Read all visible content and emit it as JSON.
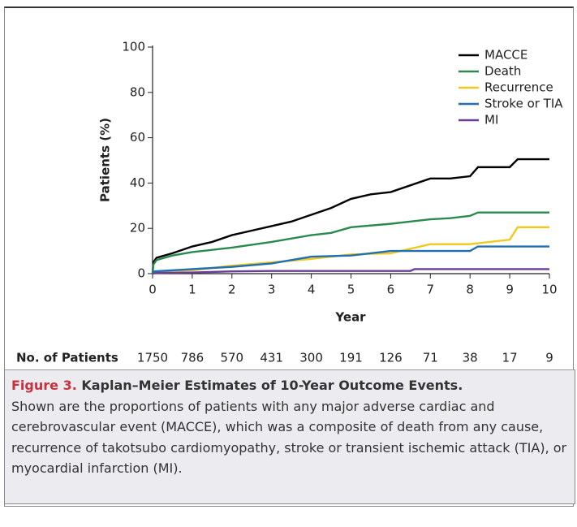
{
  "chart_data": {
    "type": "line",
    "x_label": "Year",
    "y_label": "Patients (%)",
    "xlim": [
      0,
      10
    ],
    "xticks": [
      0,
      1,
      2,
      3,
      4,
      5,
      6,
      7,
      8,
      9,
      10
    ],
    "ylim": [
      0,
      100
    ],
    "yticks": [
      0,
      20,
      40,
      60,
      80,
      100
    ],
    "legend": "upper right",
    "series": [
      {
        "name": "MACCE",
        "color": "#000000",
        "x": [
          0,
          0.02,
          0.1,
          0.5,
          1,
          1.5,
          2,
          2.5,
          3,
          3.5,
          4,
          4.5,
          5,
          5.5,
          6,
          6.5,
          7,
          7.5,
          8,
          8.2,
          9,
          9.2,
          10
        ],
        "values": [
          0,
          5,
          7,
          9,
          12,
          14,
          17,
          19,
          21,
          23,
          26,
          29,
          33,
          35,
          36,
          39,
          42,
          42,
          43,
          47,
          47,
          50.5,
          50.5
        ]
      },
      {
        "name": "Death",
        "color": "#2a8a4e",
        "x": [
          0,
          0.02,
          0.1,
          0.5,
          1,
          2,
          3,
          4,
          4.5,
          5,
          6,
          7,
          7.5,
          8,
          8.2,
          10
        ],
        "values": [
          0,
          4,
          6,
          8,
          9.5,
          11.5,
          14,
          17,
          18,
          20.5,
          22,
          24,
          24.5,
          25.5,
          27,
          27
        ]
      },
      {
        "name": "Recurrence",
        "color": "#f2c81a",
        "x": [
          0,
          0.1,
          1,
          2,
          3,
          4,
          5,
          6,
          6.5,
          7,
          8,
          9,
          9.2,
          10
        ],
        "values": [
          0,
          1,
          1.5,
          3.5,
          5,
          6.5,
          8.5,
          9,
          11,
          13,
          13,
          15,
          20.5,
          20.5
        ]
      },
      {
        "name": "Stroke or TIA",
        "color": "#1f6fb5",
        "x": [
          0,
          0.05,
          1,
          2,
          3,
          4,
          5,
          6,
          8,
          8.2,
          10
        ],
        "values": [
          0,
          1,
          2,
          3,
          4.5,
          7.5,
          8,
          10,
          10,
          12,
          12
        ]
      },
      {
        "name": "MI",
        "color": "#6a3d9a",
        "x": [
          0,
          0.1,
          1,
          2,
          3,
          6.5,
          6.6,
          10
        ],
        "values": [
          0,
          0.3,
          0.5,
          1,
          1.2,
          1.2,
          2,
          2
        ]
      }
    ],
    "at_risk": {
      "label": "No. of Patients",
      "values": [
        1750,
        786,
        570,
        431,
        300,
        191,
        126,
        71,
        38,
        17,
        9
      ]
    }
  },
  "caption": {
    "label": "Figure 3.",
    "title": "Kaplan–Meier Estimates of 10-Year Outcome Events.",
    "text": "Shown are the proportions of patients with any major adverse cardiac and cerebrovascular event (MACCE), which was a composite of death from any cause, recurrence of takotsubo cardiomyopathy, stroke or transient ischemic attack (TIA), or myocardial infarction (MI)."
  }
}
